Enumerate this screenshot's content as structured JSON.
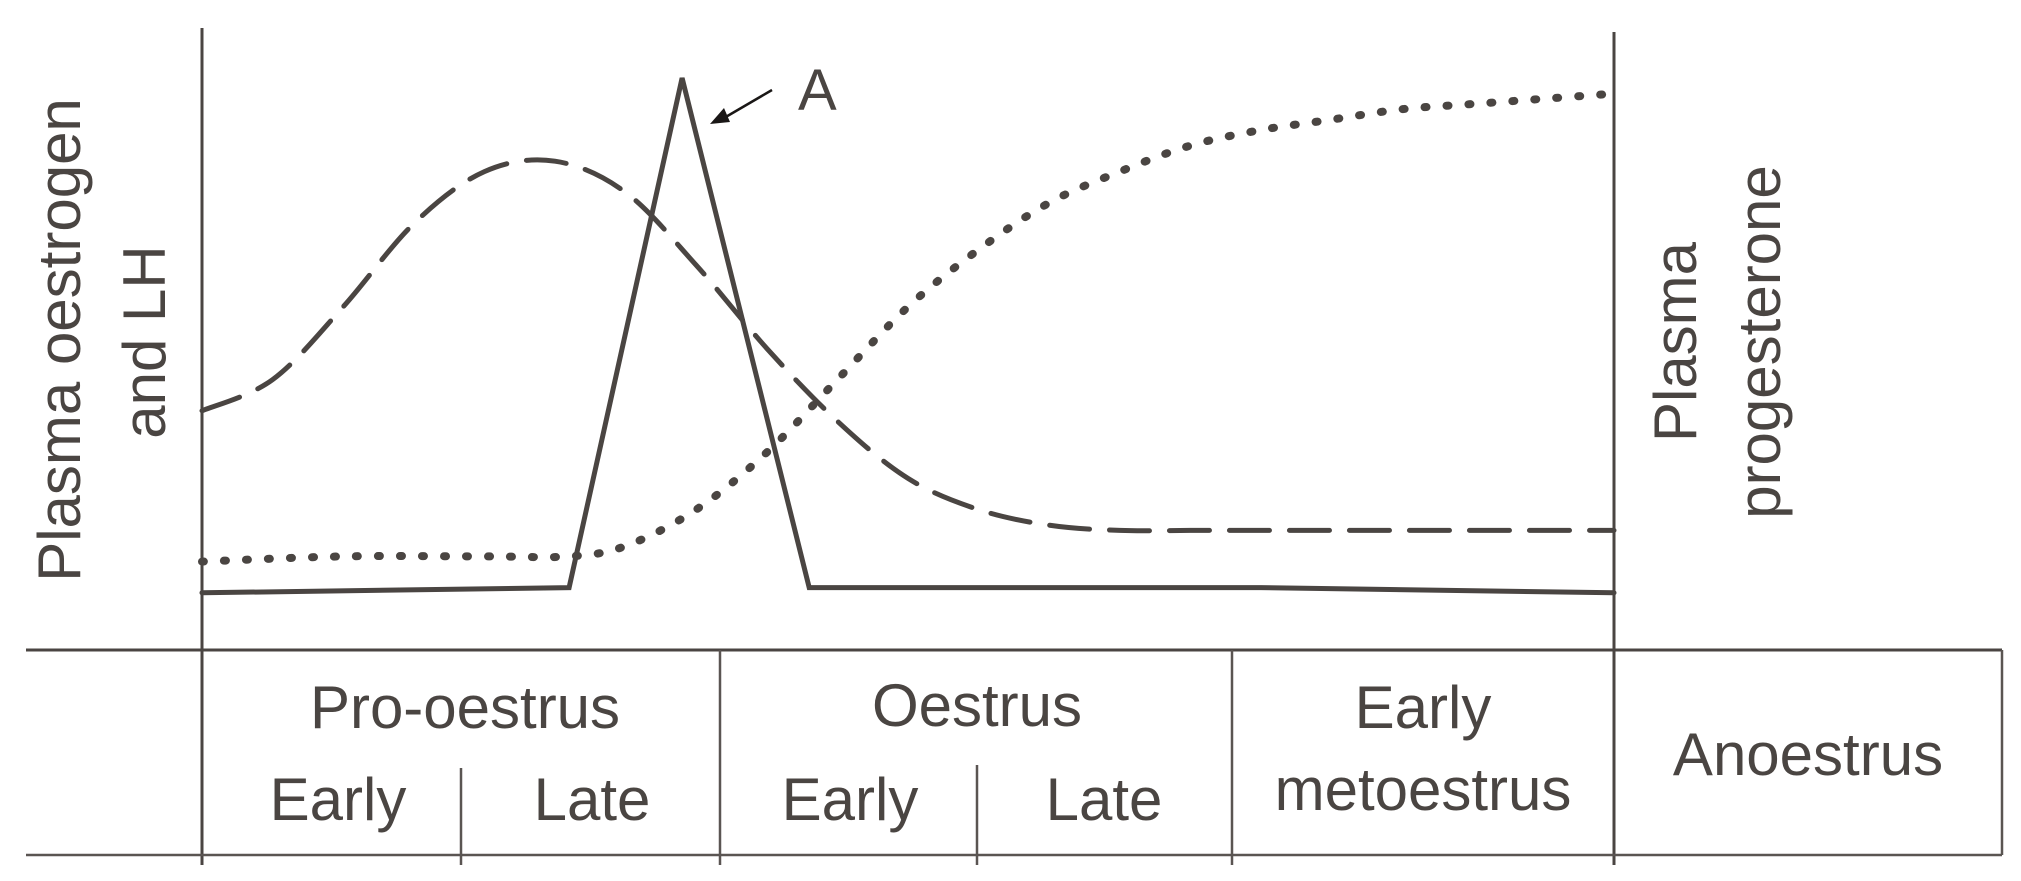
{
  "chart_data": {
    "type": "line",
    "title": "",
    "ylabel_left": [
      "Plasma oestrogen",
      "and LH"
    ],
    "ylabel_right": [
      "Plasma",
      "progesterone"
    ],
    "phases": [
      {
        "label": "Pro-oestrus",
        "subphases": [
          "Early",
          "Late"
        ]
      },
      {
        "label": "Oestrus",
        "subphases": [
          "Early",
          "Late"
        ]
      },
      {
        "label": [
          "Early",
          "metoestrus"
        ],
        "subphases": []
      },
      {
        "label": "Anoestrus",
        "subphases": []
      }
    ],
    "annotations": [
      {
        "text": "A",
        "target_series": "solid",
        "target": "peak"
      }
    ],
    "series": [
      {
        "style": "dashed",
        "x": [
          0,
          0.05,
          0.1,
          0.15,
          0.2,
          0.25,
          0.3,
          0.35,
          0.4,
          0.45,
          0.5,
          0.55,
          0.6,
          0.65,
          0.7,
          0.75,
          0.8,
          0.85,
          0.9,
          0.95,
          1.0
        ],
        "y": [
          0.36,
          0.42,
          0.56,
          0.72,
          0.82,
          0.84,
          0.78,
          0.64,
          0.48,
          0.34,
          0.23,
          0.17,
          0.14,
          0.13,
          0.13,
          0.13,
          0.13,
          0.13,
          0.13,
          0.13,
          0.13
        ]
      },
      {
        "style": "solid",
        "x": [
          0,
          0.26,
          0.34,
          0.43,
          0.5,
          0.75,
          1.0
        ],
        "y": [
          0.01,
          0.02,
          1.0,
          0.02,
          0.02,
          0.02,
          0.01
        ]
      },
      {
        "style": "dotted",
        "x": [
          0,
          0.1,
          0.2,
          0.26,
          0.3,
          0.35,
          0.4,
          0.45,
          0.5,
          0.55,
          0.6,
          0.65,
          0.7,
          0.75,
          0.8,
          0.85,
          0.9,
          0.95,
          1.0
        ],
        "y": [
          0.07,
          0.08,
          0.08,
          0.08,
          0.1,
          0.17,
          0.28,
          0.42,
          0.56,
          0.67,
          0.76,
          0.82,
          0.87,
          0.9,
          0.92,
          0.94,
          0.95,
          0.96,
          0.97
        ]
      }
    ]
  }
}
